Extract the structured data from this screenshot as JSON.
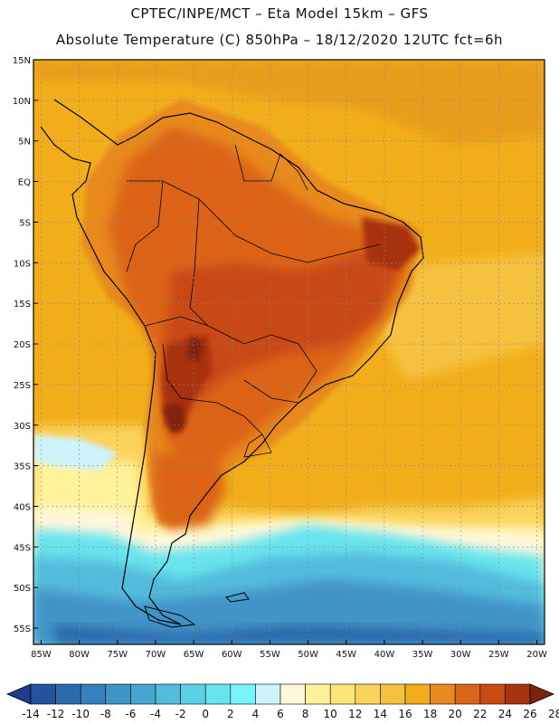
{
  "header": {
    "line1": "CPTEC/INPE/MCT –  Eta Model 15km – GFS",
    "line2": "Absolute Temperature (C) 850hPa – 18/12/2020 12UTC fct=6h"
  },
  "map": {
    "lat_labels": [
      "15N",
      "10N",
      "5N",
      "EQ",
      "5S",
      "10S",
      "15S",
      "20S",
      "25S",
      "30S",
      "35S",
      "40S",
      "45S",
      "50S",
      "55S"
    ],
    "lon_labels": [
      "85W",
      "80W",
      "75W",
      "70W",
      "65W",
      "60W",
      "55W",
      "50W",
      "45W",
      "40W",
      "35W",
      "30W",
      "25W",
      "20W"
    ],
    "lat_range": [
      15,
      -57
    ],
    "lon_range": [
      -86,
      -19
    ]
  },
  "colorbar": {
    "labels": [
      "-14",
      "-12",
      "-10",
      "-8",
      "-6",
      "-4",
      "-2",
      "0",
      "2",
      "4",
      "6",
      "8",
      "10",
      "12",
      "14",
      "16",
      "18",
      "20",
      "22",
      "24",
      "26",
      "28"
    ],
    "colors": [
      "#1f3d8c",
      "#24539e",
      "#2c6aae",
      "#3680bd",
      "#3f94c8",
      "#48a7d2",
      "#52bcdc",
      "#5cd0e4",
      "#68e4ee",
      "#76f5fa",
      "#cff3fb",
      "#fff7dc",
      "#fff29a",
      "#ffe47a",
      "#fbd35c",
      "#f5c240",
      "#f2ae1a",
      "#e88a1f",
      "#dc6418",
      "#c94a12",
      "#a8320f",
      "#80210c"
    ]
  }
}
